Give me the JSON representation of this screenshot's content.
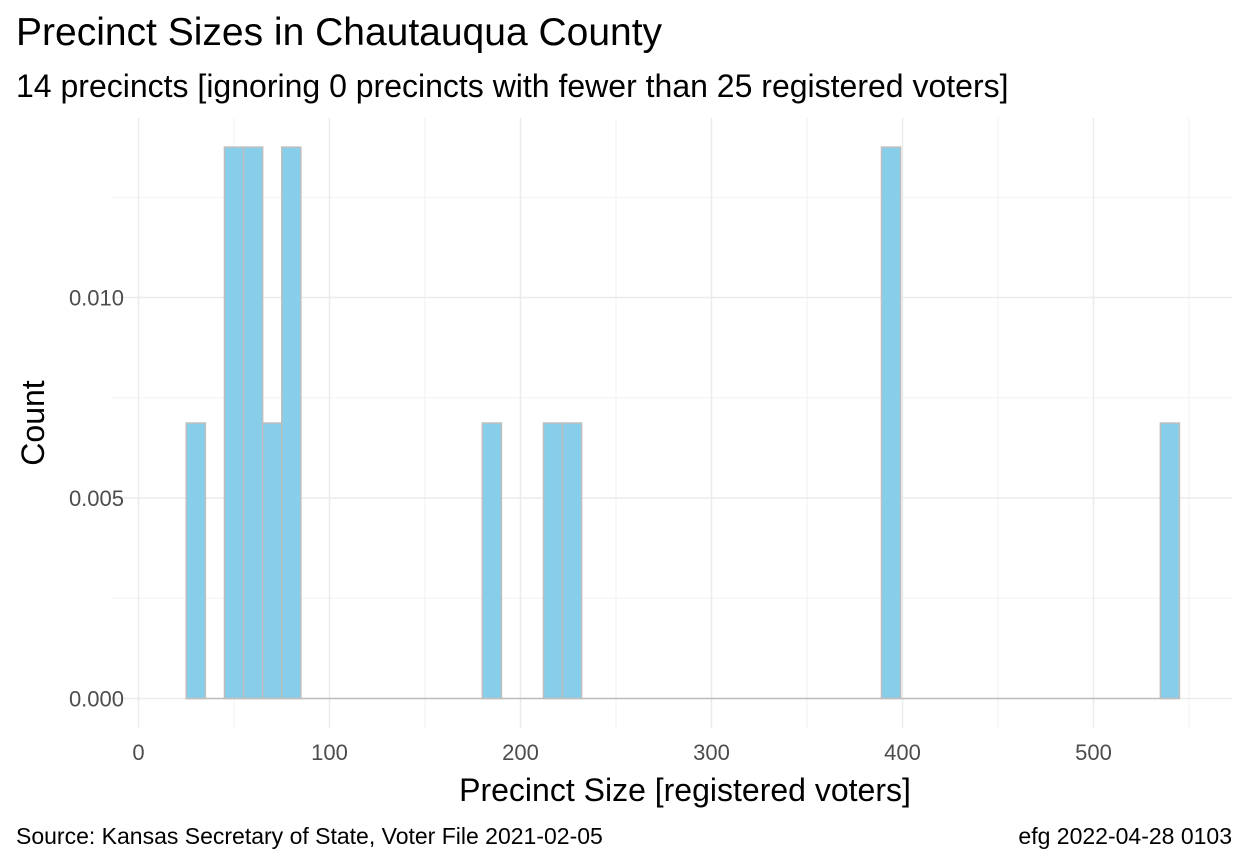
{
  "chart_data": {
    "type": "bar",
    "title": "Precinct Sizes in Chautauqua County",
    "subtitle": "14 precincts [ignoring 0 precincts with fewer than 25 registered voters]",
    "xlabel": "Precinct Size [registered voters]",
    "ylabel": "Count",
    "caption_left": "Source:  Kansas Secretary of State, Voter File  2021-02-05",
    "caption_right": "efg 2022-04-28 0103",
    "xlim": [
      0,
      550
    ],
    "ylim": [
      0,
      0.01375
    ],
    "x_ticks": [
      0,
      100,
      200,
      300,
      400,
      500
    ],
    "x_tick_labels": [
      "0",
      "100",
      "200",
      "300",
      "400",
      "500"
    ],
    "y_ticks": [
      0.0,
      0.005,
      0.01
    ],
    "y_tick_labels": [
      "0.000",
      "0.005",
      "0.010"
    ],
    "grid": true,
    "bar_fill": "#87ceeb",
    "bar_stroke": "#bebebe",
    "bins": [
      {
        "x0": 25,
        "x1": 35,
        "value": 0.00687
      },
      {
        "x0": 35,
        "x1": 45,
        "value": 0
      },
      {
        "x0": 45,
        "x1": 55,
        "value": 0.01375
      },
      {
        "x0": 55,
        "x1": 65,
        "value": 0.01375
      },
      {
        "x0": 65,
        "x1": 75,
        "value": 0.00687
      },
      {
        "x0": 75,
        "x1": 85,
        "value": 0.01375
      },
      {
        "x0": 180,
        "x1": 190,
        "value": 0.00687
      },
      {
        "x0": 212,
        "x1": 222,
        "value": 0.00687
      },
      {
        "x0": 222,
        "x1": 232,
        "value": 0.00687
      },
      {
        "x0": 389,
        "x1": 399,
        "value": 0.01375
      },
      {
        "x0": 535,
        "x1": 545,
        "value": 0.00687
      }
    ]
  }
}
